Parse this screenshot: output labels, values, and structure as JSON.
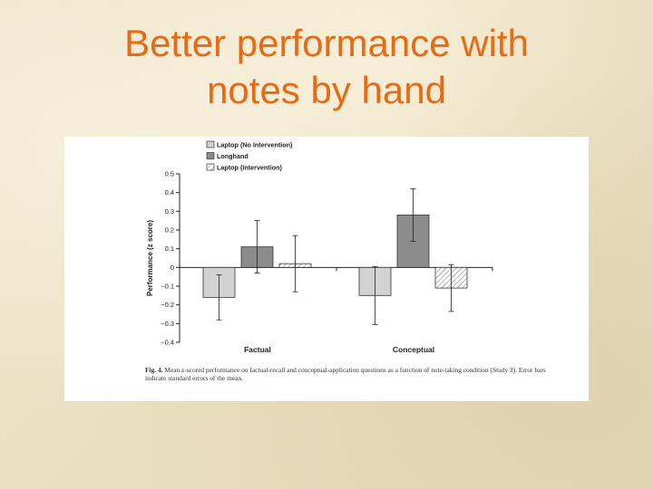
{
  "slide": {
    "title_line1": "Better performance with",
    "title_line2": "notes by hand"
  },
  "figure": {
    "label": "Fig. 4.",
    "caption": "Mean z-scored performance on factual-recall and conceptual-application questions as a function of note-taking condition (Study 2). Error bars indicate standard errors of the mean."
  },
  "chart_data": {
    "type": "bar",
    "categories": [
      "Factual",
      "Conceptual"
    ],
    "ylabel": "Performance (z score)",
    "xlabel": "",
    "ylim": [
      -0.4,
      0.5
    ],
    "yticks": [
      "0.5",
      "0.4",
      "0.3",
      "0.2",
      "0.1",
      "0",
      "−0.1",
      "−0.2",
      "−0.3",
      "−0.4"
    ],
    "ytick_values": [
      0.5,
      0.4,
      0.3,
      0.2,
      0.1,
      0,
      -0.1,
      -0.2,
      -0.3,
      -0.4
    ],
    "legend_position": "top",
    "series": [
      {
        "name": "Laptop (No Intervention)",
        "fill": "solid-light",
        "color": "#d2d2d2",
        "values": [
          -0.16,
          -0.15
        ],
        "error": [
          0.12,
          0.155
        ]
      },
      {
        "name": "Longhand",
        "fill": "solid-dark",
        "color": "#8c8c8c",
        "values": [
          0.11,
          0.28
        ],
        "error": [
          0.14,
          0.14
        ]
      },
      {
        "name": "Laptop (Intervention)",
        "fill": "hatched",
        "color": "#ffffff",
        "values": [
          0.02,
          -0.11
        ],
        "error": [
          0.15,
          0.125
        ]
      }
    ]
  }
}
